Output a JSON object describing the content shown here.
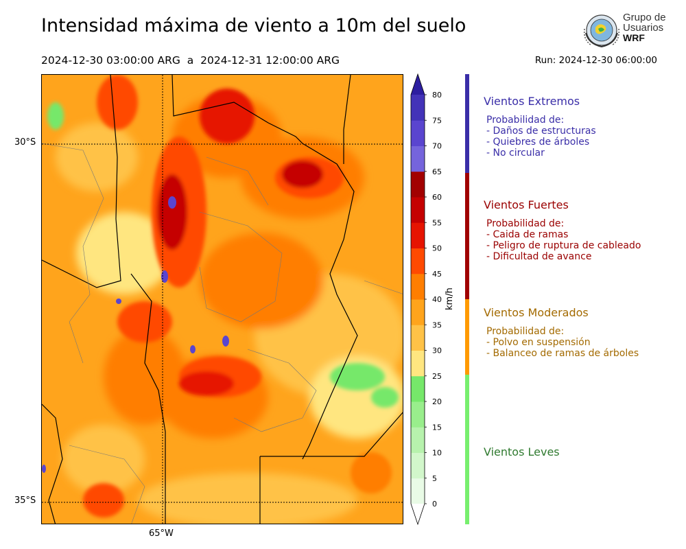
{
  "header": {
    "title": "Intensidad máxima de viento a 10m del suelo",
    "period": "2024-12-30 03:00:00 ARG  a  2024-12-31 12:00:00 ARG",
    "run": "Run: 2024-12-30 06:00:00"
  },
  "logo": {
    "line1": "Grupo de",
    "line2": "Usuarios",
    "line3": "WRF"
  },
  "map": {
    "lat_labels": [
      "30°S",
      "35°S"
    ],
    "lon_labels": [
      "65°W"
    ]
  },
  "colorbar": {
    "unit": "km/h",
    "ticks": [
      0,
      5,
      10,
      15,
      20,
      25,
      30,
      35,
      40,
      45,
      50,
      55,
      60,
      65,
      70,
      75,
      80
    ],
    "colors": [
      "#e9fbe6",
      "#d2f7cb",
      "#b7f2ad",
      "#99ee8c",
      "#76e86a",
      "#ffe680",
      "#ffc247",
      "#ffa41c",
      "#ff7e00",
      "#ff4a00",
      "#e61400",
      "#c50000",
      "#a20000",
      "#7564dc",
      "#5a45cf",
      "#4333b8",
      "#2d1ea0"
    ]
  },
  "categories": [
    {
      "title": "Vientos Extremos",
      "color": "#3a2ea8",
      "lines": [
        "Probabilidad de:",
        "- Daños de estructuras",
        "- Quiebres de árboles",
        "- No circular"
      ]
    },
    {
      "title": "Vientos Fuertes",
      "color": "#9a0000",
      "lines": [
        "Probabilidad de:",
        "- Caida de ramas",
        "- Peligro de ruptura de cableado",
        "- Dificultad de avance"
      ]
    },
    {
      "title": "Vientos Moderados",
      "color": "#a36a00",
      "lines": [
        "Probabilidad de:",
        "- Polvo en suspensión",
        "- Balanceo de ramas de árboles"
      ]
    },
    {
      "title": "Vientos Leves",
      "color": "#2f7a2f",
      "lines": []
    }
  ],
  "sidebar_colors": [
    "#3a2ea8",
    "#a00000",
    "#ff9a00",
    "#77ef6e"
  ]
}
